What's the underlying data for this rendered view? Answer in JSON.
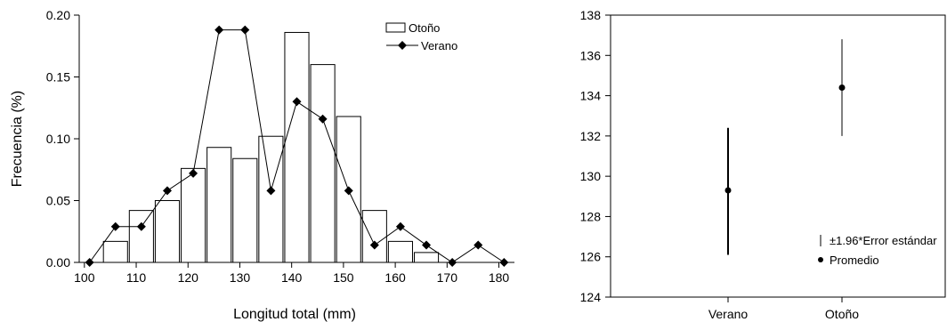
{
  "chart_data": [
    {
      "type": "bar",
      "title": "",
      "xlabel": "Longitud total (mm)",
      "ylabel": "Frecuencia (%)",
      "xlim": [
        100,
        182
      ],
      "ylim": [
        0,
        0.2
      ],
      "x_ticks": [
        "100",
        "110",
        "120",
        "130",
        "140",
        "150",
        "160",
        "170",
        "180"
      ],
      "y_ticks": [
        "0.00",
        "0.05",
        "0.10",
        "0.15",
        "0.20"
      ],
      "legend_position": "top-right",
      "bar_series": {
        "name": "Otoño",
        "bars": [
          {
            "x": 106,
            "value": 0.017
          },
          {
            "x": 111,
            "value": 0.042
          },
          {
            "x": 116,
            "value": 0.05
          },
          {
            "x": 121,
            "value": 0.076
          },
          {
            "x": 126,
            "value": 0.093
          },
          {
            "x": 131,
            "value": 0.084
          },
          {
            "x": 136,
            "value": 0.102
          },
          {
            "x": 141,
            "value": 0.186
          },
          {
            "x": 146,
            "value": 0.16
          },
          {
            "x": 151,
            "value": 0.118
          },
          {
            "x": 156,
            "value": 0.042
          },
          {
            "x": 161,
            "value": 0.017
          },
          {
            "x": 166,
            "value": 0.008
          }
        ]
      },
      "line_series": {
        "name": "Verano",
        "x": [
          101,
          106,
          111,
          116,
          121,
          126,
          131,
          136,
          141,
          146,
          151,
          156,
          161,
          166,
          171,
          176,
          181
        ],
        "y": [
          0.0,
          0.029,
          0.029,
          0.058,
          0.072,
          0.188,
          0.188,
          0.058,
          0.13,
          0.116,
          0.058,
          0.014,
          0.029,
          0.014,
          0.0,
          0.014,
          0.0
        ]
      }
    },
    {
      "type": "scatter",
      "title": "",
      "ylim": [
        124,
        138
      ],
      "y_ticks": [
        "124",
        "126",
        "128",
        "130",
        "132",
        "134",
        "136",
        "138"
      ],
      "categories": [
        "Verano",
        "Otoño"
      ],
      "means": [
        129.3,
        134.4
      ],
      "lower": [
        126.1,
        132.0
      ],
      "upper": [
        132.4,
        136.8
      ],
      "legend_position": "bottom-right",
      "legend": {
        "error_label": "±1.96*Error estándar",
        "mean_label": "Promedio"
      }
    }
  ]
}
